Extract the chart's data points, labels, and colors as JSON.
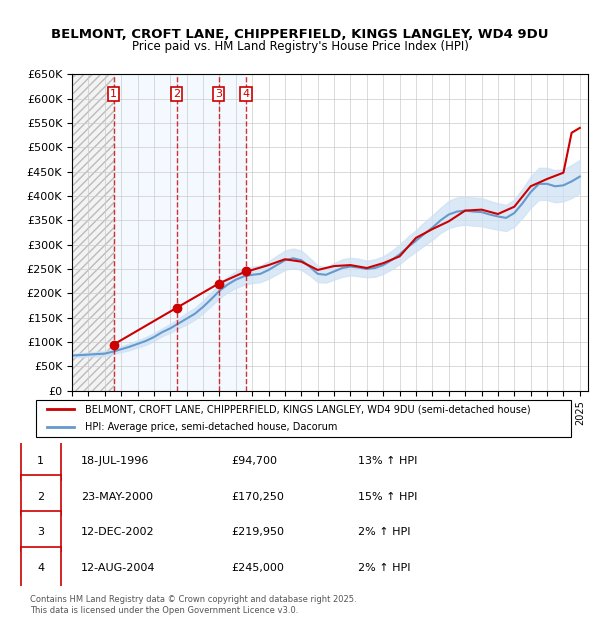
{
  "title": "BELMONT, CROFT LANE, CHIPPERFIELD, KINGS LANGLEY, WD4 9DU",
  "subtitle": "Price paid vs. HM Land Registry's House Price Index (HPI)",
  "ylabel_vals": [
    "£0",
    "£50K",
    "£100K",
    "£150K",
    "£200K",
    "£250K",
    "£300K",
    "£350K",
    "£400K",
    "£450K",
    "£500K",
    "£550K",
    "£600K",
    "£650K"
  ],
  "ylim": [
    0,
    650000
  ],
  "yticks": [
    0,
    50000,
    100000,
    150000,
    200000,
    250000,
    300000,
    350000,
    400000,
    450000,
    500000,
    550000,
    600000,
    650000
  ],
  "xlim_start": 1994.0,
  "xlim_end": 2025.5,
  "sales": [
    {
      "num": 1,
      "date_str": "18-JUL-1996",
      "date_x": 1996.54,
      "price": 94700,
      "pct": "13%",
      "dir": "↑"
    },
    {
      "num": 2,
      "date_str": "23-MAY-2000",
      "date_x": 2000.39,
      "price": 170250,
      "pct": "15%",
      "dir": "↑"
    },
    {
      "num": 3,
      "date_str": "12-DEC-2002",
      "date_x": 2002.95,
      "price": 219950,
      "pct": "2%",
      "dir": "↑"
    },
    {
      "num": 4,
      "date_str": "12-AUG-2004",
      "date_x": 2004.61,
      "price": 245000,
      "pct": "2%",
      "dir": "↑"
    }
  ],
  "hpi_line": {
    "x": [
      1994.0,
      1994.5,
      1995.0,
      1995.5,
      1996.0,
      1996.5,
      1997.0,
      1997.5,
      1998.0,
      1998.5,
      1999.0,
      1999.5,
      2000.0,
      2000.5,
      2001.0,
      2001.5,
      2002.0,
      2002.5,
      2003.0,
      2003.5,
      2004.0,
      2004.5,
      2005.0,
      2005.5,
      2006.0,
      2006.5,
      2007.0,
      2007.5,
      2008.0,
      2008.5,
      2009.0,
      2009.5,
      2010.0,
      2010.5,
      2011.0,
      2011.5,
      2012.0,
      2012.5,
      2013.0,
      2013.5,
      2014.0,
      2014.5,
      2015.0,
      2015.5,
      2016.0,
      2016.5,
      2017.0,
      2017.5,
      2018.0,
      2018.5,
      2019.0,
      2019.5,
      2020.0,
      2020.5,
      2021.0,
      2021.5,
      2022.0,
      2022.5,
      2023.0,
      2023.5,
      2024.0,
      2024.5,
      2025.0
    ],
    "y": [
      72000,
      73000,
      74000,
      75000,
      76000,
      80000,
      85000,
      90000,
      96000,
      102000,
      110000,
      120000,
      128000,
      138000,
      148000,
      158000,
      172000,
      188000,
      205000,
      218000,
      228000,
      235000,
      238000,
      240000,
      248000,
      258000,
      268000,
      272000,
      268000,
      255000,
      240000,
      238000,
      245000,
      252000,
      255000,
      253000,
      250000,
      252000,
      258000,
      268000,
      280000,
      295000,
      308000,
      322000,
      335000,
      350000,
      362000,
      368000,
      370000,
      368000,
      367000,
      362000,
      358000,
      355000,
      365000,
      385000,
      408000,
      425000,
      425000,
      420000,
      422000,
      430000,
      440000
    ],
    "upper": [
      76000,
      77000,
      78000,
      80000,
      81000,
      85000,
      91000,
      97000,
      103000,
      110000,
      118000,
      128000,
      137000,
      148000,
      160000,
      170000,
      185000,
      202000,
      220000,
      234000,
      245000,
      252000,
      255000,
      257000,
      266000,
      277000,
      288000,
      292000,
      288000,
      273000,
      257000,
      254000,
      262000,
      270000,
      273000,
      271000,
      267000,
      270000,
      276000,
      287000,
      300000,
      316000,
      330000,
      346000,
      360000,
      376000,
      390000,
      397000,
      399000,
      397000,
      396000,
      390000,
      385000,
      382000,
      393000,
      415000,
      440000,
      458000,
      458000,
      453000,
      455000,
      464000,
      474000
    ],
    "lower": [
      68000,
      69000,
      70000,
      70000,
      71000,
      75000,
      79000,
      83000,
      89000,
      94000,
      102000,
      112000,
      119000,
      128000,
      136000,
      146000,
      159000,
      174000,
      190000,
      202000,
      211000,
      218000,
      221000,
      223000,
      230000,
      239000,
      248000,
      252000,
      248000,
      237000,
      223000,
      222000,
      228000,
      234000,
      237000,
      235000,
      233000,
      234000,
      240000,
      249000,
      260000,
      274000,
      286000,
      298000,
      310000,
      324000,
      334000,
      339000,
      341000,
      339000,
      338000,
      334000,
      331000,
      328000,
      337000,
      355000,
      376000,
      392000,
      392000,
      387000,
      389000,
      396000,
      406000
    ]
  },
  "price_line": {
    "x": [
      1996.54,
      2000.39,
      2002.95,
      2004.61,
      2005.0,
      2006.0,
      2007.0,
      2008.0,
      2009.0,
      2010.0,
      2011.0,
      2012.0,
      2013.0,
      2014.0,
      2015.0,
      2016.0,
      2017.0,
      2018.0,
      2019.0,
      2020.0,
      2021.0,
      2022.0,
      2023.0,
      2024.0,
      2024.5,
      2025.0
    ],
    "y": [
      94700,
      170250,
      219950,
      245000,
      248000,
      258000,
      270000,
      265000,
      248000,
      256000,
      258000,
      252000,
      262000,
      276000,
      314000,
      332000,
      348000,
      370000,
      372000,
      363000,
      378000,
      420000,
      435000,
      448000,
      530000,
      540000
    ]
  },
  "legend_label_red": "BELMONT, CROFT LANE, CHIPPERFIELD, KINGS LANGLEY, WD4 9DU (semi-detached house)",
  "legend_label_blue": "HPI: Average price, semi-detached house, Dacorum",
  "table_rows": [
    [
      "1",
      "18-JUL-1996",
      "£94,700",
      "13% ↑ HPI"
    ],
    [
      "2",
      "23-MAY-2000",
      "£170,250",
      "15% ↑ HPI"
    ],
    [
      "3",
      "12-DEC-2002",
      "£219,950",
      "2% ↑ HPI"
    ],
    [
      "4",
      "12-AUG-2004",
      "£245,000",
      "2% ↑ HPI"
    ]
  ],
  "footer": "Contains HM Land Registry data © Crown copyright and database right 2025.\nThis data is licensed under the Open Government Licence v3.0.",
  "red_color": "#cc0000",
  "blue_color": "#6699cc",
  "blue_fill_color": "#cce0f5",
  "bg_hatch_color": "#dddddd",
  "grid_color": "#cccccc",
  "label_bg": "#f0f8ff"
}
